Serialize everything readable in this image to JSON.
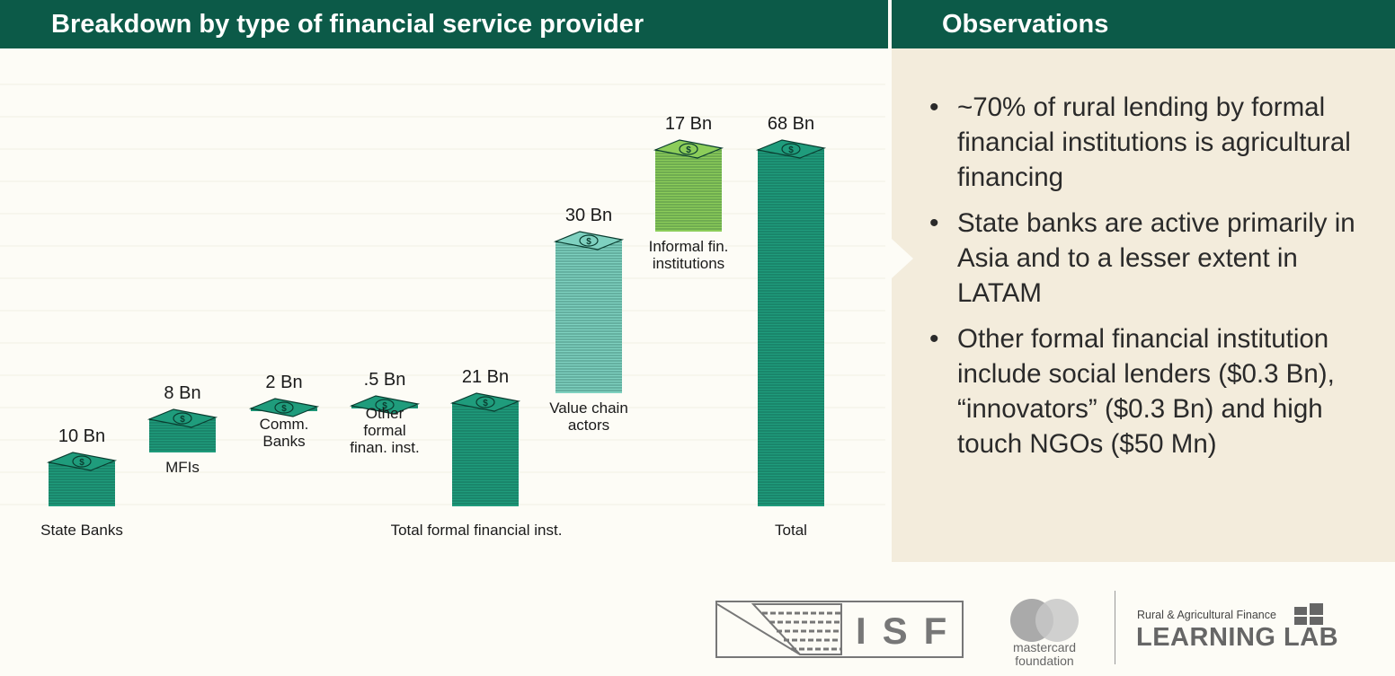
{
  "header": {
    "left_title": "Breakdown by type of financial service provider",
    "right_title": "Observations"
  },
  "observations": [
    "~70% of rural lending by formal financial institutions is agricultural financing",
    "State banks are active primarily in Asia and to a lesser extent in LATAM",
    "Other formal financial institution include social lenders ($0.3 Bn), “innovators” ($0.3 Bn) and high touch NGOs ($50 Mn)"
  ],
  "chart_data": {
    "type": "bar",
    "subtype": "waterfall",
    "unit": "Bn",
    "categories": [
      "State Banks",
      "MFIs",
      "Comm. Banks",
      "Other formal finan. inst.",
      "Total formal financial inst.",
      "Value chain actors",
      "Informal fin. institutions",
      "Total"
    ],
    "values": [
      10,
      8,
      2,
      0.5,
      21,
      30,
      17,
      68
    ],
    "value_labels": [
      "10 Bn",
      "8 Bn",
      "2 Bn",
      ".5 Bn",
      "21 Bn",
      "30 Bn",
      "17 Bn",
      "68 Bn"
    ],
    "category_label_lines": [
      [
        "State Banks"
      ],
      [
        "MFIs"
      ],
      [
        "Comm.",
        "Banks"
      ],
      [
        "Other",
        "formal",
        "finan. inst."
      ],
      [
        "Total formal financial inst."
      ],
      [
        "Value chain",
        "actors"
      ],
      [
        "Informal fin.",
        "institutions"
      ],
      [
        "Total"
      ]
    ],
    "bar_kinds": [
      "increment",
      "increment",
      "increment",
      "increment",
      "total",
      "increment",
      "increment",
      "total"
    ],
    "colors": {
      "formal": "#1f9c7c",
      "value_chain": "#7fd1c0",
      "informal": "#8ccd5a",
      "total": "#1f9c7c",
      "outline": "#0a3d30"
    },
    "series_colors": [
      "formal",
      "formal",
      "formal",
      "formal",
      "total",
      "value_chain",
      "informal",
      "total"
    ],
    "grid": true,
    "legend": "none"
  },
  "footer": {
    "isf_logo_text": "ISF",
    "mastercard_text": [
      "mastercard",
      "foundation"
    ],
    "rafl_top": "Rural & Agricultural Finance",
    "rafl_bottom": "LEARNING LAB"
  },
  "icons": {
    "bar_mark": "banknote-stack-icon",
    "bullet": "bullet-icon"
  }
}
